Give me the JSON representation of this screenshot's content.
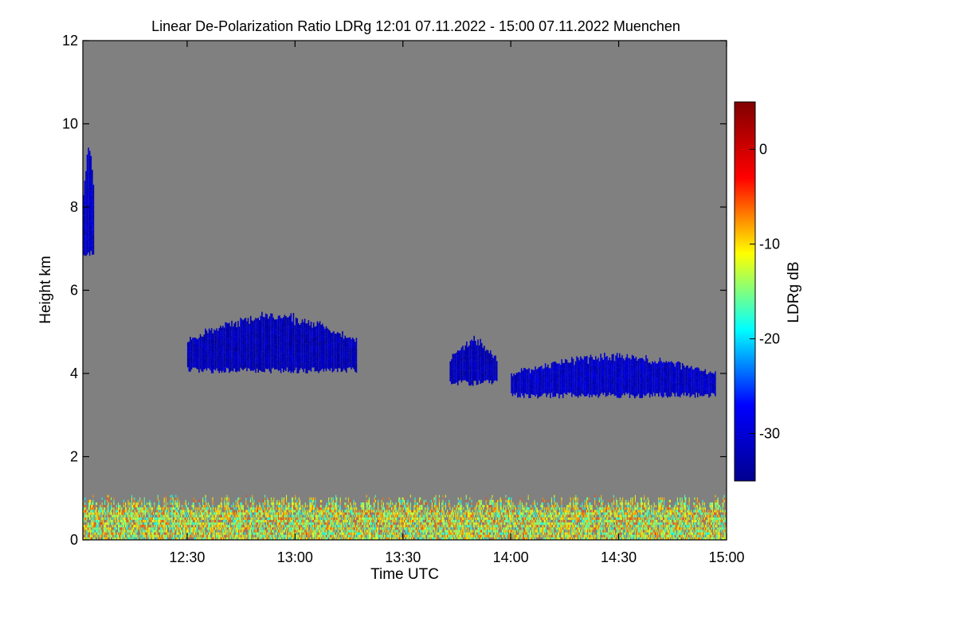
{
  "chart_data": {
    "type": "heatmap",
    "title": "Linear De-Polarization Ratio LDRg   12:01 07.11.2022 - 15:00 07.11.2022 Muenchen",
    "xlabel": "Time UTC",
    "ylabel": "Height km",
    "colorbar_label": "LDRg dB",
    "x_range_minutes_utc": [
      721,
      900
    ],
    "y_range_km": [
      0,
      12
    ],
    "x_ticks": [
      {
        "label": "12:30",
        "minutes": 750
      },
      {
        "label": "13:00",
        "minutes": 780
      },
      {
        "label": "13:30",
        "minutes": 810
      },
      {
        "label": "14:00",
        "minutes": 840
      },
      {
        "label": "14:30",
        "minutes": 870
      },
      {
        "label": "15:00",
        "minutes": 900
      }
    ],
    "y_ticks": [
      {
        "label": "0",
        "value": 0
      },
      {
        "label": "2",
        "value": 2
      },
      {
        "label": "4",
        "value": 4
      },
      {
        "label": "6",
        "value": 6
      },
      {
        "label": "8",
        "value": 8
      },
      {
        "label": "10",
        "value": 10
      },
      {
        "label": "12",
        "value": 12
      }
    ],
    "colorbar_range_db": [
      -35,
      5
    ],
    "colorbar_ticks": [
      {
        "label": "0",
        "value": 0
      },
      {
        "label": "-10",
        "value": -10
      },
      {
        "label": "-20",
        "value": -20
      },
      {
        "label": "-30",
        "value": -30
      }
    ],
    "colormap": [
      "#00008f",
      "#0000ff",
      "#00ffff",
      "#ffff00",
      "#ff0000",
      "#800000"
    ],
    "background_color": "#808080",
    "features": [
      {
        "name": "high-cloud",
        "t_start": 721,
        "t_end": 724,
        "h_bottom_km": 6.8,
        "h_top_km": 9.5,
        "ldr_db": -31
      },
      {
        "name": "cloud-layer-1",
        "t_start": 750,
        "t_end": 797,
        "h_bottom_km": 4.0,
        "h_top_km": 5.4,
        "ldr_db": -32
      },
      {
        "name": "cloud-layer-2",
        "t_start": 823,
        "t_end": 836,
        "h_bottom_km": 3.7,
        "h_top_km": 4.8,
        "ldr_db": -32
      },
      {
        "name": "cloud-layer-3",
        "t_start": 840,
        "t_end": 897,
        "h_bottom_km": 3.4,
        "h_top_km": 4.4,
        "ldr_db": -31
      },
      {
        "name": "boundary-layer-aerosol",
        "t_start": 721,
        "t_end": 900,
        "h_bottom_km": 0.0,
        "h_top_km": 1.1,
        "ldr_db": -12
      }
    ]
  }
}
